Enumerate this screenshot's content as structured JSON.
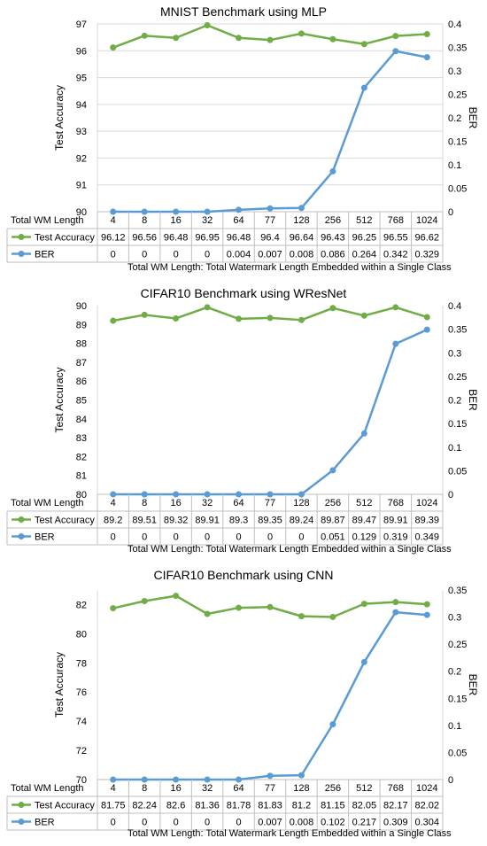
{
  "colors": {
    "accuracy": "#70AD47",
    "ber": "#5B9BD5",
    "grid": "#D9D9D9",
    "table_border": "#BFBFBF"
  },
  "chart_data": [
    {
      "type": "line",
      "title": "MNIST Benchmark using  MLP",
      "ylabel": "Test Accuracy",
      "y2label": "BER",
      "xlabel": "Total WM Length",
      "footnote": "Total WM Length: Total Watermark Length Embedded within a Single Class",
      "categories": [
        "4",
        "8",
        "16",
        "32",
        "64",
        "77",
        "128",
        "256",
        "512",
        "768",
        "1024"
      ],
      "ylim": [
        90,
        97
      ],
      "yticks": [
        "90",
        "91",
        "92",
        "93",
        "94",
        "95",
        "96",
        "97"
      ],
      "y2lim": [
        0,
        0.4
      ],
      "y2ticks": [
        "0",
        "0.05",
        "0.1",
        "0.15",
        "0.2",
        "0.25",
        "0.3",
        "0.35",
        "0.4"
      ],
      "grid": true,
      "series": [
        {
          "name": "Test Accuracy",
          "axis": "left",
          "color": "#70AD47",
          "values": [
            96.12,
            96.56,
            96.48,
            96.95,
            96.48,
            96.4,
            96.64,
            96.43,
            96.25,
            96.55,
            96.62
          ],
          "labels": [
            "96.12",
            "96.56",
            "96.48",
            "96.95",
            "96.48",
            "96.4",
            "96.64",
            "96.43",
            "96.25",
            "96.55",
            "96.62"
          ]
        },
        {
          "name": "BER",
          "axis": "right",
          "color": "#5B9BD5",
          "values": [
            0,
            0,
            0,
            0,
            0.004,
            0.007,
            0.008,
            0.086,
            0.264,
            0.342,
            0.329
          ],
          "labels": [
            "0",
            "0",
            "0",
            "0",
            "0.004",
            "0.007",
            "0.008",
            "0.086",
            "0.264",
            "0.342",
            "0.329"
          ]
        }
      ]
    },
    {
      "type": "line",
      "title": "CIFAR10 Benchmark using WResNet",
      "ylabel": "Test Accuracy",
      "y2label": "BER",
      "xlabel": "Total WM Length",
      "footnote": "Total WM Length: Total Watermark Length Embedded within a Single Class",
      "categories": [
        "4",
        "8",
        "16",
        "32",
        "64",
        "77",
        "128",
        "256",
        "512",
        "768",
        "1024"
      ],
      "ylim": [
        80,
        90
      ],
      "yticks": [
        "80",
        "81",
        "82",
        "83",
        "84",
        "85",
        "86",
        "87",
        "88",
        "89",
        "90"
      ],
      "y2lim": [
        0,
        0.4
      ],
      "y2ticks": [
        "0",
        "0.05",
        "0.1",
        "0.15",
        "0.2",
        "0.25",
        "0.3",
        "0.35",
        "0.4"
      ],
      "grid": false,
      "series": [
        {
          "name": "Test Accuracy",
          "axis": "left",
          "color": "#70AD47",
          "values": [
            89.2,
            89.51,
            89.32,
            89.91,
            89.3,
            89.35,
            89.24,
            89.87,
            89.47,
            89.91,
            89.39
          ],
          "labels": [
            "89.2",
            "89.51",
            "89.32",
            "89.91",
            "89.3",
            "89.35",
            "89.24",
            "89.87",
            "89.47",
            "89.91",
            "89.39"
          ]
        },
        {
          "name": "BER",
          "axis": "right",
          "color": "#5B9BD5",
          "values": [
            0,
            0,
            0,
            0,
            0,
            0,
            0,
            0.051,
            0.129,
            0.319,
            0.349
          ],
          "labels": [
            "0",
            "0",
            "0",
            "0",
            "0",
            "0",
            "0",
            "0.051",
            "0.129",
            "0.319",
            "0.349"
          ]
        }
      ]
    },
    {
      "type": "line",
      "title": "CIFAR10 Benchmark using  CNN",
      "ylabel": "Test Accuracy",
      "y2label": "BER",
      "xlabel": "Total WM Length",
      "footnote": "Total WM Length: Total Watermark Length Embedded within a Single Class",
      "categories": [
        "4",
        "8",
        "16",
        "32",
        "64",
        "77",
        "128",
        "256",
        "512",
        "768",
        "1024"
      ],
      "ylim": [
        70,
        83
      ],
      "yticks": [
        "70",
        "72",
        "74",
        "76",
        "78",
        "80",
        "82"
      ],
      "y2lim": [
        0,
        0.35
      ],
      "y2ticks": [
        "0",
        "0.05",
        "0.1",
        "0.15",
        "0.2",
        "0.25",
        "0.3",
        "0.35"
      ],
      "grid": false,
      "series": [
        {
          "name": "Test Accuracy",
          "axis": "left",
          "color": "#70AD47",
          "values": [
            81.75,
            82.24,
            82.6,
            81.36,
            81.78,
            81.83,
            81.2,
            81.15,
            82.05,
            82.17,
            82.02
          ],
          "labels": [
            "81.75",
            "82.24",
            "82.6",
            "81.36",
            "81.78",
            "81.83",
            "81.2",
            "81.15",
            "82.05",
            "82.17",
            "82.02"
          ]
        },
        {
          "name": "BER",
          "axis": "right",
          "color": "#5B9BD5",
          "values": [
            0,
            0,
            0,
            0,
            0,
            0.007,
            0.008,
            0.102,
            0.217,
            0.309,
            0.304
          ],
          "labels": [
            "0",
            "0",
            "0",
            "0",
            "0",
            "0.007",
            "0.008",
            "0.102",
            "0.217",
            "0.309",
            "0.304"
          ]
        }
      ]
    }
  ]
}
